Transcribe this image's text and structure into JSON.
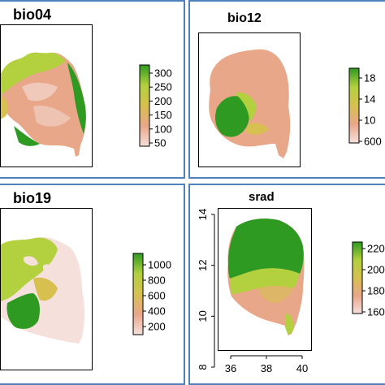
{
  "panels": [
    {
      "title": "bio04",
      "legend_ticks": [
        "300",
        "250",
        "200",
        "150",
        "100",
        "50"
      ],
      "colors": [
        "#f6e0dc",
        "#e9a789",
        "#d7c050",
        "#b3d03e",
        "#2e9a22"
      ]
    },
    {
      "title": "bio12",
      "legend_ticks": [
        "18",
        "14",
        "10",
        "600"
      ],
      "colors": [
        "#f6e0dc",
        "#e9a789",
        "#d7c050",
        "#b3d03e",
        "#2e9a22"
      ]
    },
    {
      "title": "bio19",
      "legend_ticks": [
        "1000",
        "800",
        "600",
        "400",
        "200"
      ],
      "colors": [
        "#f6e0dc",
        "#e9a789",
        "#d7c050",
        "#b3d03e",
        "#2e9a22"
      ]
    },
    {
      "title": "srad",
      "legend_ticks": [
        "220",
        "200",
        "180",
        "160"
      ],
      "x_ticks": [
        "36",
        "38",
        "40"
      ],
      "y_ticks": [
        "14",
        "12",
        "10",
        "8"
      ],
      "colors": [
        "#f6e0dc",
        "#e9a789",
        "#d7c050",
        "#b3d03e",
        "#2e9a22"
      ]
    }
  ]
}
